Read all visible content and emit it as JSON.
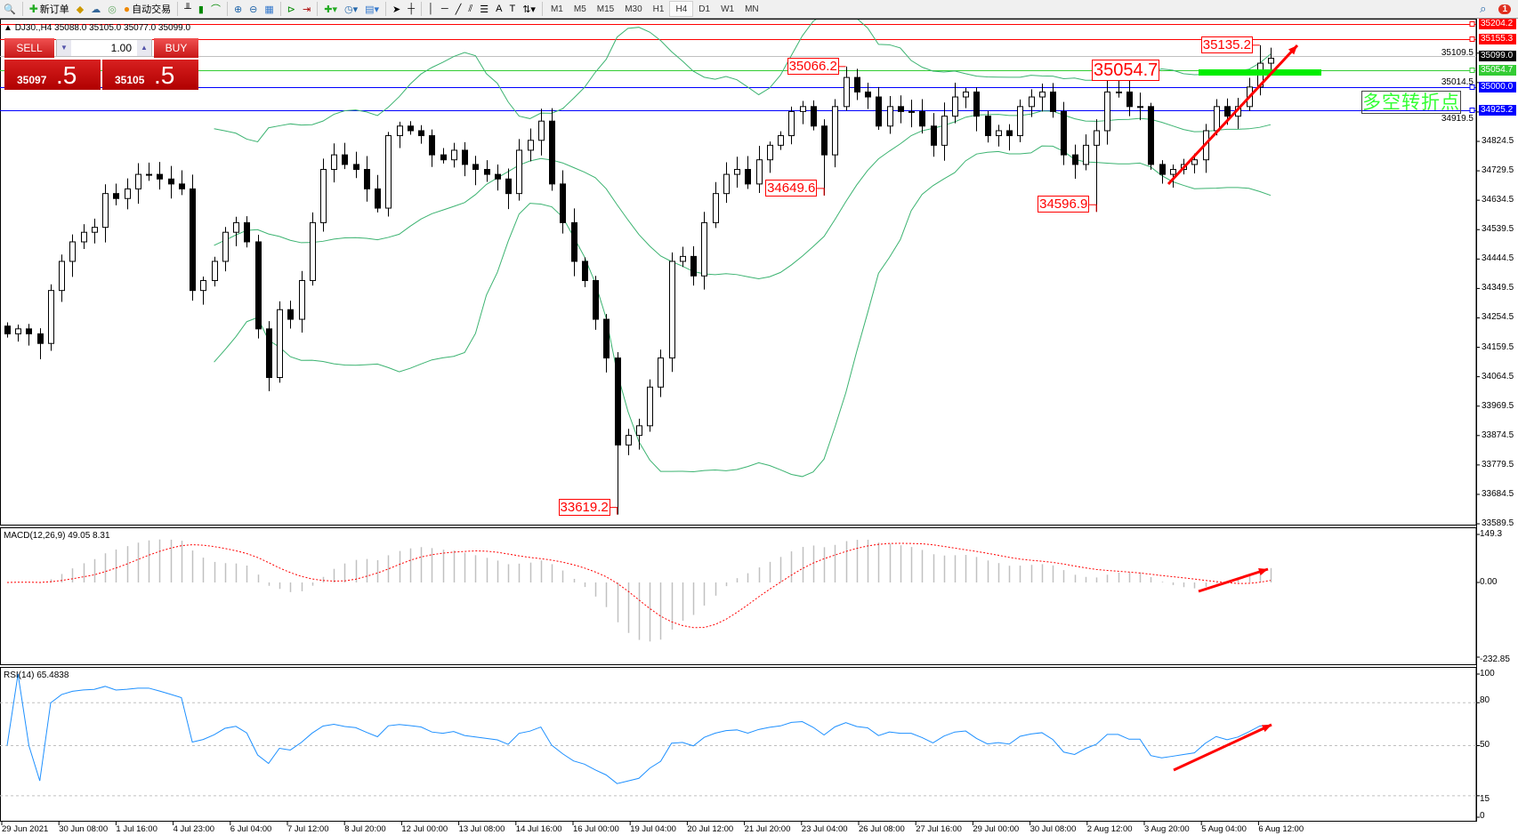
{
  "toolbar": {
    "new_order": "新订单",
    "auto_trade": "自动交易",
    "timeframes": [
      "M1",
      "M5",
      "M15",
      "M30",
      "H1",
      "H4",
      "D1",
      "W1",
      "MN"
    ],
    "active_timeframe": "H4",
    "text_tool": "A",
    "notifications": "1"
  },
  "chart_header": {
    "symbol": "DJ30.,H4",
    "ohlc": "35088.0 35105.0 35077.0 35099.0"
  },
  "trade_panel": {
    "sell_label": "SELL",
    "buy_label": "BUY",
    "volume": "1.00",
    "sell_main": "35097",
    "sell_frac": ".5",
    "buy_main": "35105",
    "buy_frac": ".5"
  },
  "price_axis": {
    "ticks": [
      "35109.5",
      "35014.5",
      "34919.5",
      "34824.5",
      "34729.5",
      "34634.5",
      "34539.5",
      "34444.5",
      "34349.5",
      "34254.5",
      "34159.5",
      "34064.5",
      "33969.5",
      "33874.5",
      "33779.5",
      "33684.5",
      "33589.5"
    ],
    "tags": [
      {
        "value": "35204.2",
        "color": "#ff0000"
      },
      {
        "value": "35155.3",
        "color": "#ff0000"
      },
      {
        "value": "35099.0",
        "color": "#000000"
      },
      {
        "value": "35054.7",
        "color": "#33cc33"
      },
      {
        "value": "35000.0",
        "color": "#0000ff"
      },
      {
        "value": "34925.2",
        "color": "#0000ff"
      }
    ]
  },
  "annotations": {
    "level_label": "35054.7",
    "turn_point": "多空转折点",
    "extremes": [
      {
        "text": "33619.2",
        "value": 33619.2,
        "index": 56,
        "kind": "low"
      },
      {
        "text": "34649.6",
        "value": 34649.6,
        "index": 75,
        "kind": "low"
      },
      {
        "text": "34596.9",
        "value": 34596.9,
        "index": 100,
        "kind": "low"
      },
      {
        "text": "35066.2",
        "value": 35066.2,
        "index": 77,
        "kind": "high"
      },
      {
        "text": "35135.2",
        "value": 35135.2,
        "index": 115,
        "kind": "high"
      }
    ]
  },
  "macd": {
    "label": "MACD(12,26,9) 49.05 8.31",
    "ticks": [
      "149.3",
      "0.00",
      "-232.85"
    ]
  },
  "rsi": {
    "label": "RSI(14) 65.4838",
    "ticks": [
      "100",
      "80",
      "50",
      "15",
      "0"
    ]
  },
  "time_axis": [
    "29 Jun 2021",
    "30 Jun 08:00",
    "1 Jul 16:00",
    "4 Jul 23:00",
    "6 Jul 04:00",
    "7 Jul 12:00",
    "8 Jul 20:00",
    "12 Jul 00:00",
    "13 Jul 08:00",
    "14 Jul 16:00",
    "16 Jul 00:00",
    "19 Jul 04:00",
    "20 Jul 12:00",
    "21 Jul 20:00",
    "23 Jul 04:00",
    "26 Jul 08:00",
    "27 Jul 16:00",
    "29 Jul 00:00",
    "30 Jul 08:00",
    "2 Aug 12:00",
    "3 Aug 20:00",
    "5 Aug 04:00",
    "6 Aug 12:00"
  ],
  "colors": {
    "bands": "#3cb371",
    "macd_hist": "#c0c0c0",
    "macd_signal": "#ff0000",
    "rsi": "#1e90ff",
    "arrow": "#ff0000",
    "zone": "#00ee00"
  },
  "chart_data": {
    "type": "candlestick",
    "symbol": "DJ30.",
    "timeframe": "H4",
    "ylim": [
      33589.5,
      35204.2
    ],
    "indicators": [
      "Bollinger Bands",
      "MACD(12,26,9)",
      "RSI(14)"
    ],
    "horizontal_levels": [
      35204.2,
      35155.3,
      35099.0,
      35054.7,
      35000.0,
      34925.2
    ],
    "close": [
      34203,
      34219,
      34203,
      34172,
      34343,
      34437,
      34500,
      34531,
      34547,
      34656,
      34640,
      34671,
      34718,
      34718,
      34703,
      34687,
      34671,
      34343,
      34375,
      34437,
      34531,
      34562,
      34500,
      34219,
      34062,
      34281,
      34250,
      34375,
      34562,
      34734,
      34781,
      34750,
      34734,
      34671,
      34609,
      34843,
      34874,
      34859,
      34843,
      34781,
      34765,
      34796,
      34750,
      34734,
      34718,
      34703,
      34656,
      34796,
      34828,
      34890,
      34687,
      34562,
      34437,
      34375,
      34250,
      34125,
      33844,
      33875,
      33906,
      34031,
      34125,
      34437,
      34453,
      34390,
      34562,
      34656,
      34718,
      34734,
      34687,
      34765,
      34812,
      34843,
      34921,
      34937,
      34874,
      34781,
      34937,
      35031,
      34984,
      34968,
      34874,
      34937,
      34921,
      34921,
      34874,
      34812,
      34906,
      34968,
      34984,
      34906,
      34843,
      34859,
      34843,
      34937,
      34968,
      34984,
      34921,
      34781,
      34750,
      34812,
      34859,
      34984,
      34984,
      34937,
      34937,
      34750,
      34718,
      34734,
      34750,
      34765,
      34859,
      34937,
      34906,
      34937,
      35000,
      35077,
      35093
    ]
  }
}
